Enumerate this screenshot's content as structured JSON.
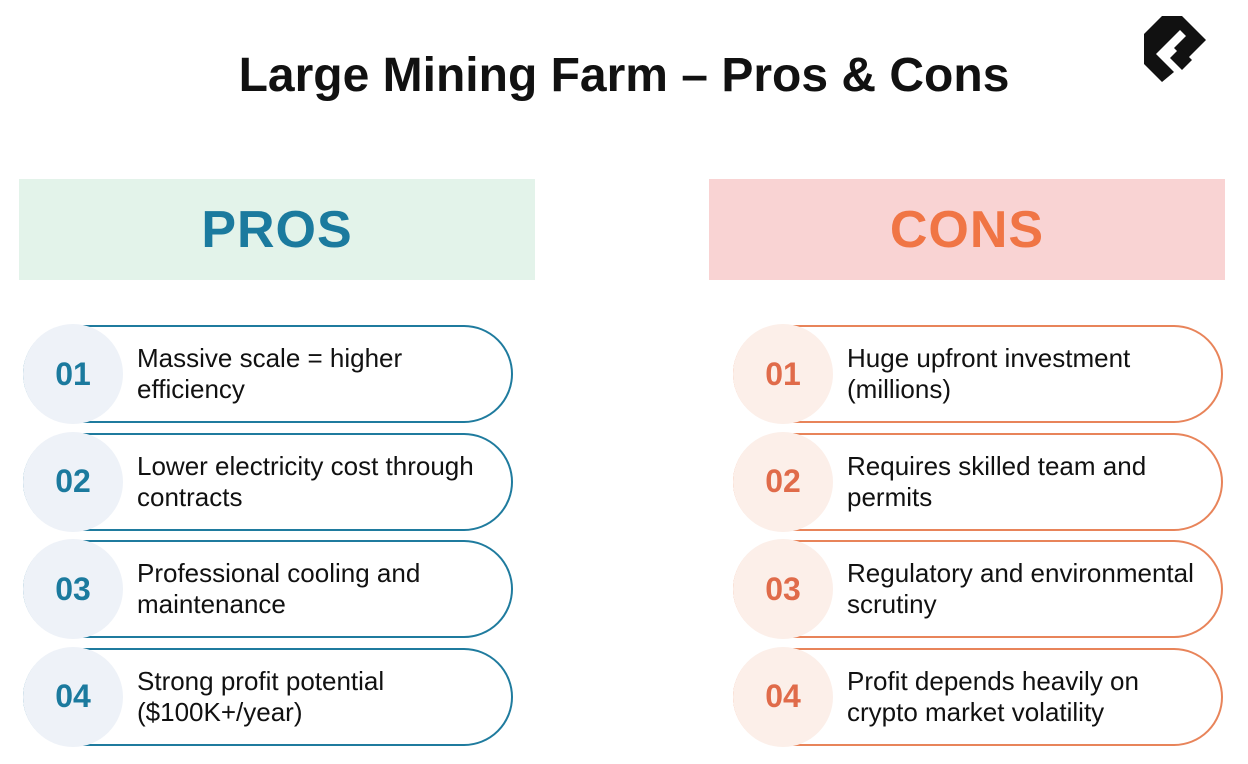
{
  "title": "Large Mining Farm – Pros & Cons",
  "pros": {
    "heading": "PROS",
    "items": [
      {
        "number": "01",
        "text": "Massive scale = higher efficiency"
      },
      {
        "number": "02",
        "text": "Lower electricity cost through contracts"
      },
      {
        "number": "03",
        "text": "Professional cooling and maintenance"
      },
      {
        "number": "04",
        "text": "Strong profit potential ($100K+/year)"
      }
    ]
  },
  "cons": {
    "heading": "CONS",
    "items": [
      {
        "number": "01",
        "text": "Huge upfront investment (millions)"
      },
      {
        "number": "02",
        "text": "Requires skilled team and permits"
      },
      {
        "number": "03",
        "text": "Regulatory and environmental scrutiny"
      },
      {
        "number": "04",
        "text": "Profit depends heavily on crypto market volatility"
      }
    ]
  }
}
